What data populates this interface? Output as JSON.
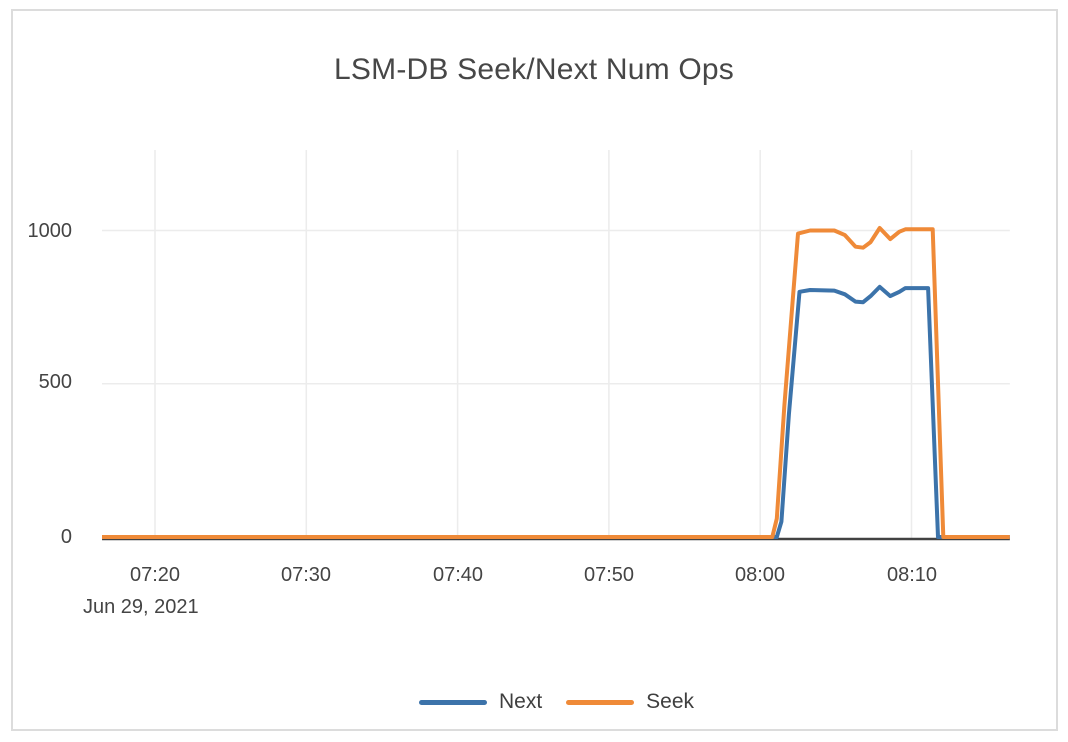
{
  "chart_data": {
    "type": "line",
    "title": "LSM-DB Seek/Next Num Ops",
    "x_axis": {
      "date_label": "Jun 29, 2021",
      "tick_labels": [
        "07:20",
        "07:30",
        "07:40",
        "07:50",
        "08:00",
        "08:10"
      ],
      "tick_minutes": [
        20,
        30,
        40,
        50,
        60,
        70
      ],
      "range_minutes": [
        16.5,
        76.5
      ],
      "time_base": "minutes after 07:00 on Jun 29, 2021"
    },
    "y_axis": {
      "tick_labels": [
        "0",
        "500",
        "1000"
      ],
      "tick_values": [
        0,
        500,
        1000
      ],
      "range": [
        0,
        1260
      ]
    },
    "grid": true,
    "legend_position": "bottom",
    "series": [
      {
        "name": "Next",
        "color": "#3c73aa",
        "points": [
          [
            16.5,
            0
          ],
          [
            61.1,
            0
          ],
          [
            61.4,
            50
          ],
          [
            61.9,
            400
          ],
          [
            62.6,
            800
          ],
          [
            63.3,
            806
          ],
          [
            64.9,
            804
          ],
          [
            65.6,
            792
          ],
          [
            66.3,
            768
          ],
          [
            66.8,
            766
          ],
          [
            67.3,
            786
          ],
          [
            67.9,
            816
          ],
          [
            68.6,
            786
          ],
          [
            69.2,
            800
          ],
          [
            69.6,
            812
          ],
          [
            71.1,
            812
          ],
          [
            71.75,
            0
          ],
          [
            76.5,
            0
          ]
        ]
      },
      {
        "name": "Seek",
        "color": "#ef8a38",
        "points": [
          [
            16.5,
            0
          ],
          [
            60.8,
            0
          ],
          [
            61.1,
            60
          ],
          [
            61.6,
            430
          ],
          [
            62.5,
            990
          ],
          [
            63.3,
            1000
          ],
          [
            64.9,
            1000
          ],
          [
            65.6,
            985
          ],
          [
            66.3,
            947
          ],
          [
            66.8,
            944
          ],
          [
            67.3,
            962
          ],
          [
            67.9,
            1008
          ],
          [
            68.6,
            972
          ],
          [
            69.2,
            996
          ],
          [
            69.6,
            1004
          ],
          [
            71.4,
            1004
          ],
          [
            72.1,
            0
          ],
          [
            76.5,
            0
          ]
        ]
      }
    ],
    "colors": {
      "grid_line": "#ececec",
      "zero_line": "#424242",
      "text": "#444444",
      "card_border": "#dcdcdc"
    }
  }
}
